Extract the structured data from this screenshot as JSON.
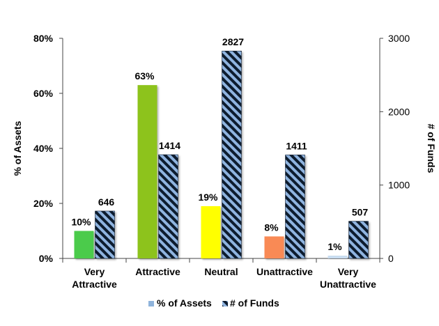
{
  "chart_data": {
    "type": "bar",
    "categories": [
      [
        "Very",
        "Attractive"
      ],
      [
        "Attractive"
      ],
      [
        "Neutral"
      ],
      [
        "Unattractive"
      ],
      [
        "Very",
        "Unattractive"
      ]
    ],
    "series": [
      {
        "name": "% of Assets",
        "axis": "left",
        "values": [
          10,
          63,
          19,
          8,
          1
        ],
        "labels": [
          "10%",
          "63%",
          "19%",
          "8%",
          "1%"
        ],
        "colors": [
          "#4ccb4c",
          "#8dc31c",
          "#ffff00",
          "#f98a55",
          "#c8dcf0"
        ],
        "legend_color": "#8fb4dc"
      },
      {
        "name": "# of Funds",
        "axis": "right",
        "values": [
          646,
          1414,
          2827,
          1411,
          507
        ],
        "labels": [
          "646",
          "1414",
          "2827",
          "1411",
          "507"
        ],
        "fill": "hatched",
        "stripe_colors": [
          "#8fb4e0",
          "#0d1b2e"
        ]
      }
    ],
    "ylabel": "% of Assets",
    "ylabel_right": "# of Funds",
    "ylim": [
      0,
      80
    ],
    "ylim_right": [
      0,
      3000
    ],
    "yticks": [
      "0%",
      "20%",
      "40%",
      "60%",
      "80%"
    ],
    "yticks_right": [
      "0",
      "1000",
      "2000",
      "3000"
    ],
    "legend_position": "bottom",
    "grid": false
  }
}
